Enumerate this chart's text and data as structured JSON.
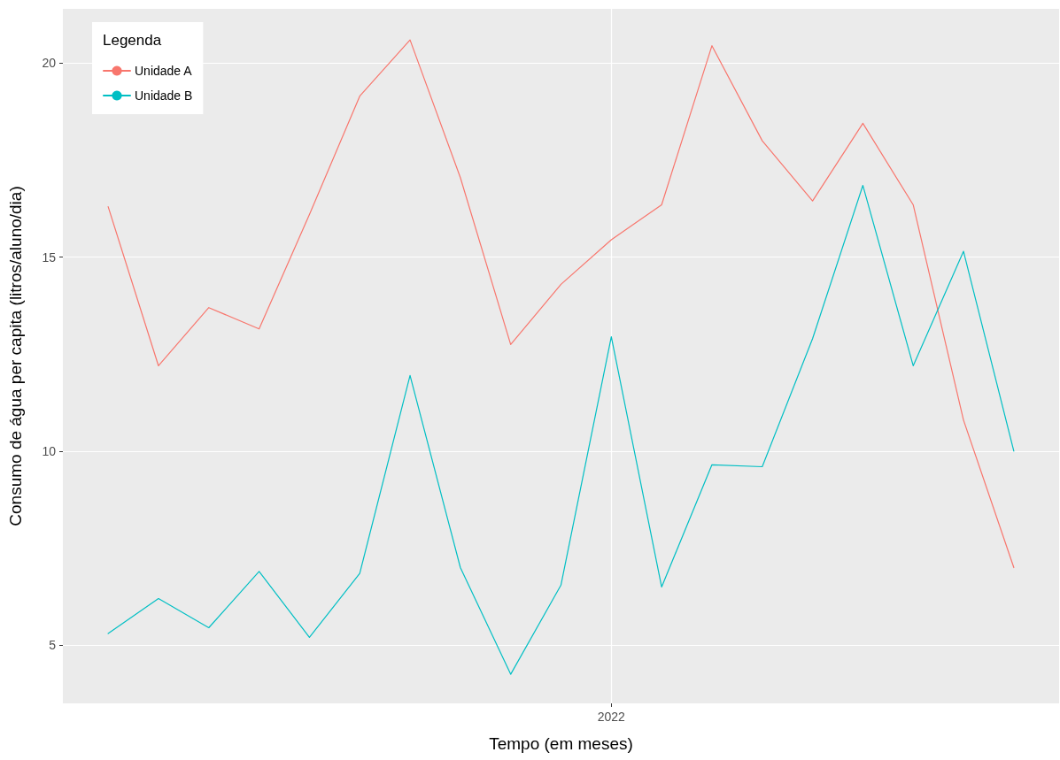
{
  "chart_data": {
    "type": "line",
    "xlabel": "Tempo (em meses)",
    "ylabel": "Consumo de água per capita (litros/aluno/dia)",
    "legend_title": "Legenda",
    "categories": [
      null,
      null,
      null,
      null,
      null,
      null,
      null,
      null,
      null,
      null,
      "2022",
      null,
      null,
      null,
      null,
      null,
      null,
      null,
      null
    ],
    "series": [
      {
        "name": "Unidade A",
        "color": "#f8766d",
        "values": [
          16.3,
          12.2,
          13.7,
          13.15,
          16.1,
          19.15,
          20.6,
          17.05,
          12.75,
          14.3,
          15.45,
          16.35,
          20.45,
          18.0,
          16.45,
          18.45,
          16.35,
          10.8,
          7.0
        ]
      },
      {
        "name": "Unidade B",
        "color": "#00bfc4",
        "values": [
          5.3,
          6.2,
          5.45,
          6.9,
          5.2,
          6.85,
          11.95,
          7.0,
          4.25,
          6.55,
          12.95,
          6.5,
          9.65,
          9.6,
          12.9,
          16.85,
          12.2,
          15.15,
          10.0
        ]
      }
    ],
    "ylim": [
      3.5,
      21.4
    ],
    "yticks": [
      5,
      10,
      15,
      20
    ],
    "grid": true,
    "legend": "top left",
    "marker": "none",
    "line_style": "solid"
  }
}
